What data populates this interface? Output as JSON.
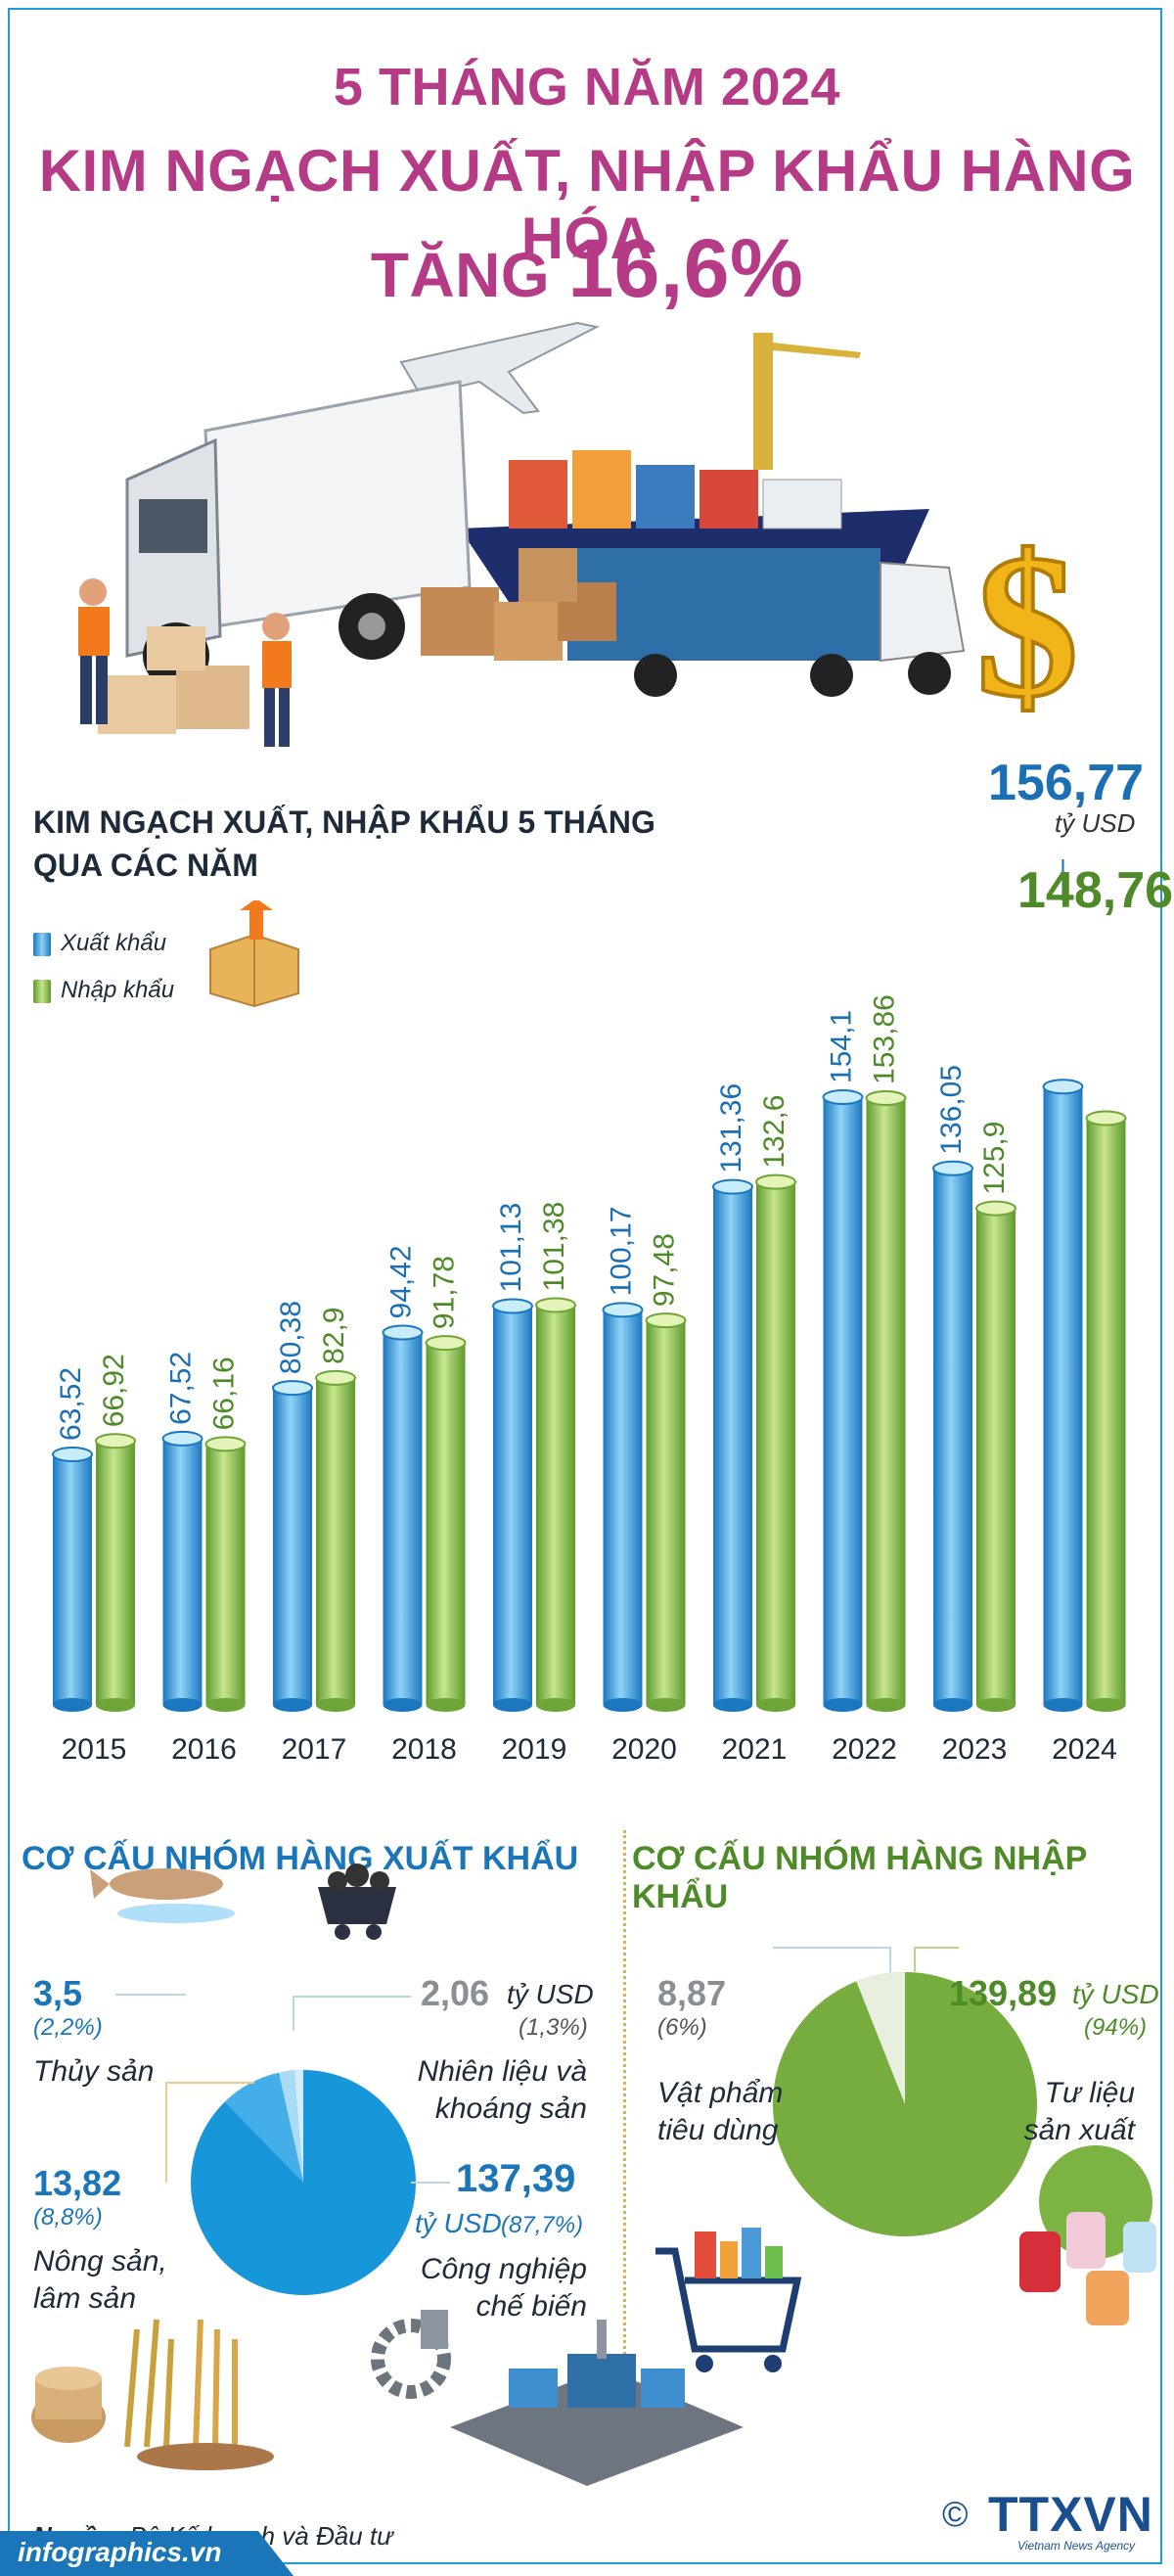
{
  "header": {
    "line1": "5 THÁNG NĂM 2024",
    "line2": "KIM NGẠCH XUẤT, NHẬP KHẨU HÀNG HÓA",
    "line3_prefix": "TĂNG ",
    "line3_value": "16,6%"
  },
  "chart_data": {
    "type": "bar",
    "title": "KIM NGẠCH XUẤT, NHẬP KHẨU 5 THÁNG QUA CÁC NĂM",
    "title_line1": "KIM NGẠCH XUẤT, NHẬP KHẨU 5 THÁNG",
    "title_line2": "QUA CÁC NĂM",
    "categories": [
      "2015",
      "2016",
      "2017",
      "2018",
      "2019",
      "2020",
      "2021",
      "2022",
      "2023",
      "2024"
    ],
    "series": [
      {
        "name": "Xuất khẩu",
        "values": [
          63.52,
          67.52,
          80.38,
          94.42,
          101.13,
          100.17,
          131.36,
          154.1,
          136.05,
          156.77
        ],
        "labels": [
          "63,52",
          "67,52",
          "80,38",
          "94,42",
          "101,13",
          "100,17",
          "131,36",
          "154,1",
          "136,05",
          "156,77"
        ]
      },
      {
        "name": "Nhập khẩu",
        "values": [
          66.92,
          66.16,
          82.9,
          91.78,
          101.38,
          97.48,
          132.6,
          153.86,
          125.9,
          148.76
        ],
        "labels": [
          "66,92",
          "66,16",
          "82,9",
          "91,78",
          "101,38",
          "97,48",
          "132,6",
          "153,86",
          "125,9",
          "148,76"
        ]
      }
    ],
    "legend_position": "top-left",
    "highlight": {
      "export": "156,77",
      "import": "148,76",
      "unit": "tỷ USD"
    },
    "colors": {
      "export": "#3aa0de",
      "import": "#8cc04f"
    },
    "grid": false
  },
  "export_structure": {
    "heading": "CƠ CẤU NHÓM HÀNG XUẤT KHẨU",
    "unit": "tỷ USD",
    "items": [
      {
        "label": "Thủy sản",
        "value": "3,5",
        "pct": "(2,2%)",
        "share": 2.2
      },
      {
        "label_line1": "Nhiên liệu và",
        "label_line2": "khoáng sản",
        "value": "2,06",
        "pct": "(1,3%)",
        "share": 1.3
      },
      {
        "label_line1": "Nông sản,",
        "label_line2": "lâm sản",
        "value": "13,82",
        "pct": "(8,8%)",
        "share": 8.8
      },
      {
        "label_line1": "Công nghiệp",
        "label_line2": "chế biến",
        "value": "137,39",
        "pct": "(87,7%)",
        "share": 87.7
      }
    ]
  },
  "import_structure": {
    "heading": "CƠ CẤU NHÓM HÀNG NHẬP KHẨU",
    "unit": "tỷ USD",
    "items": [
      {
        "label_line1": "Vật phẩm",
        "label_line2": "tiêu dùng",
        "value": "8,87",
        "pct": "(6%)",
        "share": 6
      },
      {
        "label_line1": "Tư liệu",
        "label_line2": "sản xuất",
        "value": "139,89",
        "pct": "(94%)",
        "share": 94
      }
    ]
  },
  "footer": {
    "source_label": "Nguồn:",
    "source_text": " Bộ Kế hoạch và Đầu tư",
    "site": "infographics.vn",
    "copyright": "©",
    "logo": "TTXVN",
    "logo_sub": "Vietnam News Agency"
  }
}
